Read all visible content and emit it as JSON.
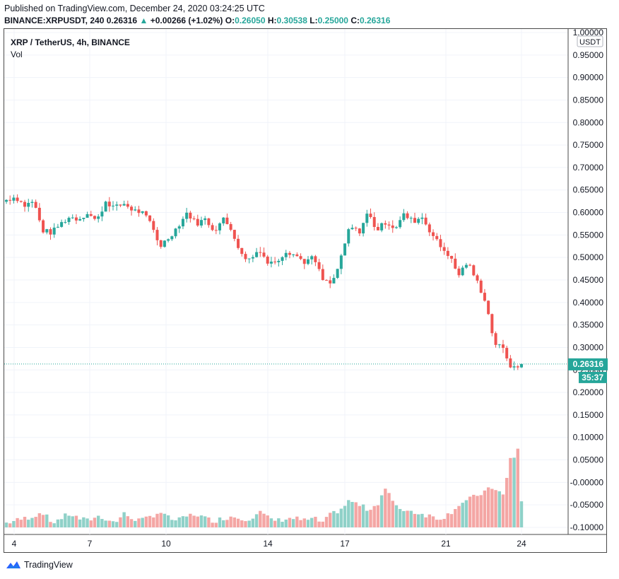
{
  "header": {
    "published": "Published on TradingView.com, December 24, 2020 03:24:25 UTC",
    "symbol": "BINANCE:XRPUSDT, 240",
    "price": "0.26316",
    "arrow": "▲",
    "change": "+0.00266 (+1.02%)",
    "o_label": "O:",
    "o_value": "0.26050",
    "h_label": "H:",
    "h_value": "0.30538",
    "l_label": "L:",
    "l_value": "0.25000",
    "c_label": "C:",
    "c_value": "0.26316"
  },
  "legend": {
    "title": "XRP / TetherUS, 4h, BINANCE",
    "volume": "Vol"
  },
  "footer": {
    "brand": "TradingView",
    "logo_icon": "tradingview-logo-icon"
  },
  "colors": {
    "up": "#26a69a",
    "down": "#ef5350",
    "up_vol": "#8fd1c8",
    "down_vol": "#f4a6a4",
    "grid": "#f0f3fa",
    "axis_text": "#131722"
  },
  "chart_data": {
    "type": "candlestick",
    "currency_label": "USDT",
    "y_ticks": [
      "1.00000",
      "0.95000",
      "0.90000",
      "0.85000",
      "0.80000",
      "0.75000",
      "0.70000",
      "0.65000",
      "0.60000",
      "0.55000",
      "0.50000",
      "0.45000",
      "0.40000",
      "0.35000",
      "0.30000",
      "0.25000",
      "0.20000",
      "0.15000",
      "0.10000",
      "0.05000",
      "-0.00000",
      "-0.05000",
      "-0.10000"
    ],
    "ylim": [
      -0.1,
      1.0
    ],
    "x_ticks": [
      "4",
      "7",
      "10",
      "14",
      "17",
      "21",
      "24"
    ],
    "last_price_label": "0.26316",
    "countdown_label": "35:37",
    "grid": true,
    "ohlc_path": [
      0.628,
      0.635,
      0.615,
      0.625,
      0.56,
      0.555,
      0.575,
      0.59,
      0.585,
      0.6,
      0.58,
      0.625,
      0.61,
      0.62,
      0.605,
      0.6,
      0.575,
      0.525,
      0.545,
      0.57,
      0.6,
      0.575,
      0.585,
      0.56,
      0.585,
      0.56,
      0.505,
      0.495,
      0.52,
      0.485,
      0.495,
      0.515,
      0.505,
      0.49,
      0.5,
      0.45,
      0.44,
      0.495,
      0.57,
      0.555,
      0.6,
      0.56,
      0.58,
      0.565,
      0.595,
      0.58,
      0.59,
      0.555,
      0.525,
      0.505,
      0.46,
      0.49,
      0.45,
      0.405,
      0.31,
      0.295,
      0.25,
      0.263
    ],
    "volume_path": [
      0.01,
      0.015,
      0.02,
      0.025,
      0.035,
      0.01,
      0.02,
      0.03,
      0.02,
      0.015,
      0.025,
      0.02,
      0.01,
      0.03,
      0.02,
      0.015,
      0.025,
      0.035,
      0.02,
      0.015,
      0.025,
      0.03,
      0.02,
      0.015,
      0.02,
      0.025,
      0.02,
      0.02,
      0.035,
      0.02,
      0.015,
      0.02,
      0.02,
      0.015,
      0.02,
      0.01,
      0.03,
      0.04,
      0.06,
      0.05,
      0.04,
      0.05,
      0.09,
      0.045,
      0.04,
      0.035,
      0.03,
      0.025,
      0.02,
      0.03,
      0.05,
      0.06,
      0.07,
      0.08,
      0.09,
      0.07,
      0.175,
      0.06
    ]
  }
}
